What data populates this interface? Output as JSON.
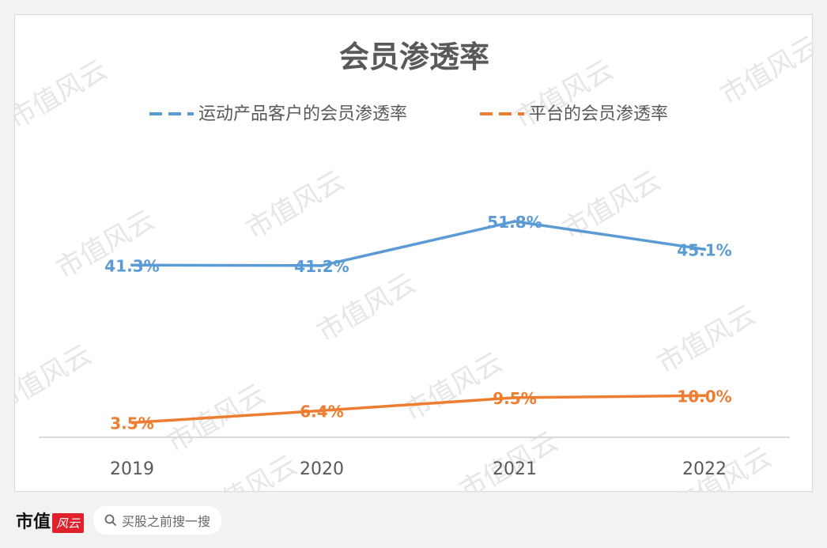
{
  "chart_data": {
    "type": "line",
    "title": "会员渗透率",
    "categories": [
      "2019",
      "2020",
      "2021",
      "2022"
    ],
    "series": [
      {
        "name": "运动产品客户的会员渗透率",
        "values": [
          41.3,
          41.2,
          51.8,
          45.1
        ],
        "labels": [
          "41.3%",
          "41.2%",
          "51.8%",
          "45.1%"
        ],
        "color": "#5b9bd5"
      },
      {
        "name": "平台的会员渗透率",
        "values": [
          3.5,
          6.4,
          9.5,
          10.0
        ],
        "labels": [
          "3.5%",
          "6.4%",
          "9.5%",
          "10.0%"
        ],
        "color": "#ed7d31"
      }
    ],
    "ylim": [
      0,
      70
    ],
    "grid": false,
    "legend_position": "top"
  },
  "footer": {
    "brand": "市值",
    "logo_text": "风云",
    "search_placeholder": "买股之前搜一搜"
  },
  "watermark": "市值风云",
  "colors": {
    "background": "#f2f2f2",
    "axis": "#d9d9d9",
    "title": "#595959"
  }
}
